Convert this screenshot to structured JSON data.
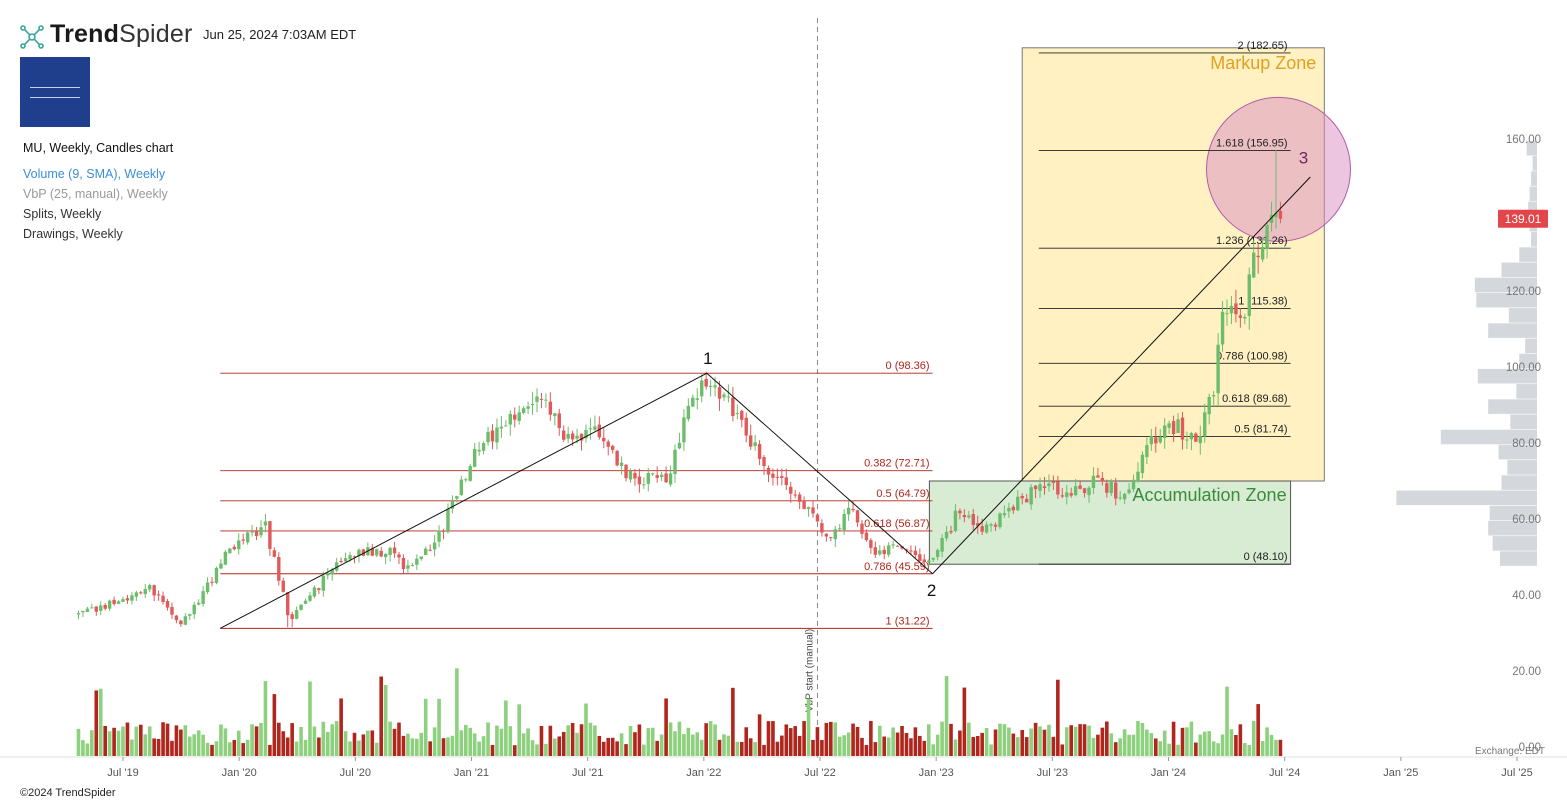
{
  "header": {
    "brand_bold": "Trend",
    "brand_light": "Spider",
    "timestamp": "Jun 25, 2024 7:03AM EDT"
  },
  "legend": {
    "main": "MU, Weekly, Candles chart",
    "volume": "Volume (9, SMA), Weekly",
    "vbp": "VbP (25, manual), Weekly",
    "splits": "Splits, Weekly",
    "drawings": "Drawings, Weekly"
  },
  "footer": {
    "copyright": "©2024 TrendSpider",
    "exchange": "Exchange: EDT"
  },
  "colors": {
    "up": "#6cbd6b",
    "down": "#e05a5a",
    "vol_up": "#8dd07e",
    "vol_down": "#b0261c",
    "fib_red": "#b0261c",
    "markup_fill": "#fff1c2",
    "accum_fill": "#d7ecd3",
    "circle_fill": "#d98ec2",
    "price_tag": "#e2464a"
  },
  "chart_data": {
    "type": "candlestick",
    "symbol": "MU",
    "timeframe": "Weekly",
    "x_ticks": [
      "Jul '19",
      "Jan '20",
      "Jul '20",
      "Jan '21",
      "Jul '21",
      "Jan '22",
      "Jul '22",
      "Jan '23",
      "Jul '23",
      "Jan '24",
      "Jul '24",
      "Jan '25",
      "Jul '25"
    ],
    "y_ticks": [
      40.0,
      60.0,
      80.0,
      100.0,
      120.0,
      140.0,
      160.0
    ],
    "volume_ticks": [
      "0.00",
      "20.00"
    ],
    "last_price": "139.01",
    "price_anchors": [
      {
        "date": "2019-05-01",
        "price": 35
      },
      {
        "date": "2019-08-15",
        "price": 42
      },
      {
        "date": "2019-10-01",
        "price": 32
      },
      {
        "date": "2019-12-25",
        "price": 54
      },
      {
        "date": "2020-02-10",
        "price": 58
      },
      {
        "date": "2020-03-20",
        "price": 33
      },
      {
        "date": "2020-06-10",
        "price": 50
      },
      {
        "date": "2020-08-20",
        "price": 52
      },
      {
        "date": "2020-09-25",
        "price": 46
      },
      {
        "date": "2020-11-15",
        "price": 58
      },
      {
        "date": "2021-01-05",
        "price": 78
      },
      {
        "date": "2021-04-20",
        "price": 94
      },
      {
        "date": "2021-05-25",
        "price": 83
      },
      {
        "date": "2021-07-15",
        "price": 82
      },
      {
        "date": "2021-09-10",
        "price": 70
      },
      {
        "date": "2021-11-05",
        "price": 72
      },
      {
        "date": "2021-12-10",
        "price": 90
      },
      {
        "date": "2022-01-04",
        "price": 96
      },
      {
        "date": "2022-02-15",
        "price": 88
      },
      {
        "date": "2022-04-10",
        "price": 74
      },
      {
        "date": "2022-06-10",
        "price": 62
      },
      {
        "date": "2022-07-10",
        "price": 55
      },
      {
        "date": "2022-08-20",
        "price": 63
      },
      {
        "date": "2022-09-25",
        "price": 51
      },
      {
        "date": "2022-11-01",
        "price": 54
      },
      {
        "date": "2022-12-25",
        "price": 48.5
      },
      {
        "date": "2023-02-01",
        "price": 61
      },
      {
        "date": "2023-03-20",
        "price": 58
      },
      {
        "date": "2023-05-01",
        "price": 63
      },
      {
        "date": "2023-06-15",
        "price": 70
      },
      {
        "date": "2023-07-20",
        "price": 66
      },
      {
        "date": "2023-09-10",
        "price": 70
      },
      {
        "date": "2023-10-25",
        "price": 66
      },
      {
        "date": "2023-12-10",
        "price": 82
      },
      {
        "date": "2024-01-10",
        "price": 84
      },
      {
        "date": "2024-02-15",
        "price": 82
      },
      {
        "date": "2024-03-10",
        "price": 92
      },
      {
        "date": "2024-03-28",
        "price": 118
      },
      {
        "date": "2024-04-20",
        "price": 110
      },
      {
        "date": "2024-05-15",
        "price": 128
      },
      {
        "date": "2024-06-10",
        "price": 142
      },
      {
        "date": "2024-06-24",
        "price": 139.01
      }
    ],
    "fib_retracement_1": {
      "levels": [
        {
          "label": "0 (98.36)",
          "price": 98.36
        },
        {
          "label": "0.382 (72.71)",
          "price": 72.71
        },
        {
          "label": "0.5 (64.79)",
          "price": 64.79
        },
        {
          "label": "0.618 (56.87)",
          "price": 56.87
        },
        {
          "label": "0.786 (45.59)",
          "price": 45.59
        },
        {
          "label": "1 (31.22)",
          "price": 31.22
        }
      ],
      "start_date": "2019-12-01",
      "end_date": "2022-12-25"
    },
    "fib_extension_2": {
      "levels": [
        {
          "label": "2 (182.65)",
          "price": 182.65
        },
        {
          "label": "1.618 (156.95)",
          "price": 156.95
        },
        {
          "label": "1.236 (131.26)",
          "price": 131.26
        },
        {
          "label": "1 (115.38)",
          "price": 115.38
        },
        {
          "label": "0.786 (100.98)",
          "price": 100.98
        },
        {
          "label": "0.618 (89.68)",
          "price": 89.68
        },
        {
          "label": "0.5 (81.74)",
          "price": 81.74
        },
        {
          "label": "0 (48.10)",
          "price": 48.1
        }
      ],
      "start_date": "2023-06-10",
      "end_date": "2024-07-10"
    },
    "wave_points": [
      {
        "label": "1",
        "date": "2022-01-04",
        "price": 98.36
      },
      {
        "label": "2",
        "date": "2022-12-25",
        "price": 45.59
      },
      {
        "label": "3",
        "date": "2024-08-15",
        "price": 152
      }
    ],
    "zones": [
      {
        "label": "Markup Zone",
        "start_date": "2023-05-15",
        "end_date": "2024-09-01",
        "top": 184,
        "bottom": 70
      },
      {
        "label": "Accumulation Zone",
        "start_date": "2022-12-20",
        "end_date": "2024-07-10",
        "top": 70,
        "bottom": 48.1
      }
    ],
    "vertical_marker": {
      "label": "VbP start (manual)",
      "date": "2022-06-27"
    },
    "vbp_profile": [
      {
        "price": 49.5,
        "size": 0.25
      },
      {
        "price": 53.5,
        "size": 0.3
      },
      {
        "price": 57.5,
        "size": 0.33
      },
      {
        "price": 61.5,
        "size": 0.32
      },
      {
        "price": 65.5,
        "size": 0.95
      },
      {
        "price": 69.5,
        "size": 0.24
      },
      {
        "price": 73.5,
        "size": 0.2
      },
      {
        "price": 77.5,
        "size": 0.26
      },
      {
        "price": 81.5,
        "size": 0.65
      },
      {
        "price": 85.5,
        "size": 0.18
      },
      {
        "price": 89.5,
        "size": 0.33
      },
      {
        "price": 93.5,
        "size": 0.14
      },
      {
        "price": 97.5,
        "size": 0.4
      },
      {
        "price": 101.5,
        "size": 0.12
      },
      {
        "price": 105.5,
        "size": 0.08
      },
      {
        "price": 109.5,
        "size": 0.33
      },
      {
        "price": 113.5,
        "size": 0.19
      },
      {
        "price": 117.5,
        "size": 0.41
      },
      {
        "price": 121.5,
        "size": 0.42
      },
      {
        "price": 125.5,
        "size": 0.24
      },
      {
        "price": 129.5,
        "size": 0.12
      },
      {
        "price": 133.5,
        "size": 0.04
      },
      {
        "price": 137.5,
        "size": 0.05
      },
      {
        "price": 141.5,
        "size": 0.06
      },
      {
        "price": 145.5,
        "size": 0.05
      },
      {
        "price": 149.5,
        "size": 0.04
      },
      {
        "price": 153.5,
        "size": 0.03
      },
      {
        "price": 157.5,
        "size": 0.07
      }
    ]
  }
}
